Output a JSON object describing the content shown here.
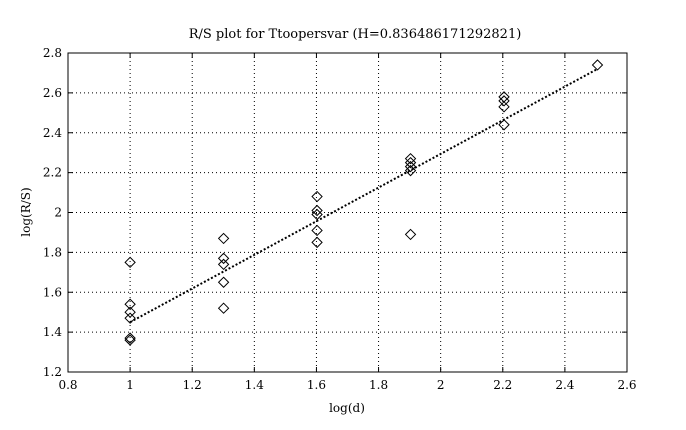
{
  "chart_data": {
    "type": "scatter",
    "title": "R/S plot for Ttoopersvar (H=0.836486171292821)",
    "xlabel": "log(d)",
    "ylabel": "log(R/S)",
    "xlim": [
      0.8,
      2.6
    ],
    "ylim": [
      1.2,
      2.8
    ],
    "xticks": [
      "0.8",
      "1",
      "1.2",
      "1.4",
      "1.6",
      "1.8",
      "2",
      "2.2",
      "2.4",
      "2.6"
    ],
    "yticks": [
      "1.2",
      "1.4",
      "1.6",
      "1.8",
      "2",
      "2.2",
      "2.4",
      "2.6",
      "2.8"
    ],
    "grid": true,
    "points": [
      {
        "x": 1.0,
        "y": 1.75
      },
      {
        "x": 1.0,
        "y": 1.54
      },
      {
        "x": 1.0,
        "y": 1.5
      },
      {
        "x": 1.0,
        "y": 1.47
      },
      {
        "x": 1.0,
        "y": 1.37
      },
      {
        "x": 1.0,
        "y": 1.36
      },
      {
        "x": 1.301,
        "y": 1.87
      },
      {
        "x": 1.301,
        "y": 1.77
      },
      {
        "x": 1.301,
        "y": 1.74
      },
      {
        "x": 1.301,
        "y": 1.65
      },
      {
        "x": 1.301,
        "y": 1.52
      },
      {
        "x": 1.602,
        "y": 2.08
      },
      {
        "x": 1.602,
        "y": 2.01
      },
      {
        "x": 1.602,
        "y": 1.99
      },
      {
        "x": 1.602,
        "y": 1.91
      },
      {
        "x": 1.602,
        "y": 1.85
      },
      {
        "x": 1.903,
        "y": 2.27
      },
      {
        "x": 1.903,
        "y": 2.25
      },
      {
        "x": 1.903,
        "y": 2.23
      },
      {
        "x": 1.903,
        "y": 2.21
      },
      {
        "x": 1.903,
        "y": 1.89
      },
      {
        "x": 2.204,
        "y": 2.58
      },
      {
        "x": 2.204,
        "y": 2.56
      },
      {
        "x": 2.204,
        "y": 2.53
      },
      {
        "x": 2.204,
        "y": 2.44
      },
      {
        "x": 2.505,
        "y": 2.74
      }
    ],
    "fit_line": {
      "x": [
        1.0,
        2.505
      ],
      "y": [
        1.45,
        2.72
      ]
    }
  }
}
